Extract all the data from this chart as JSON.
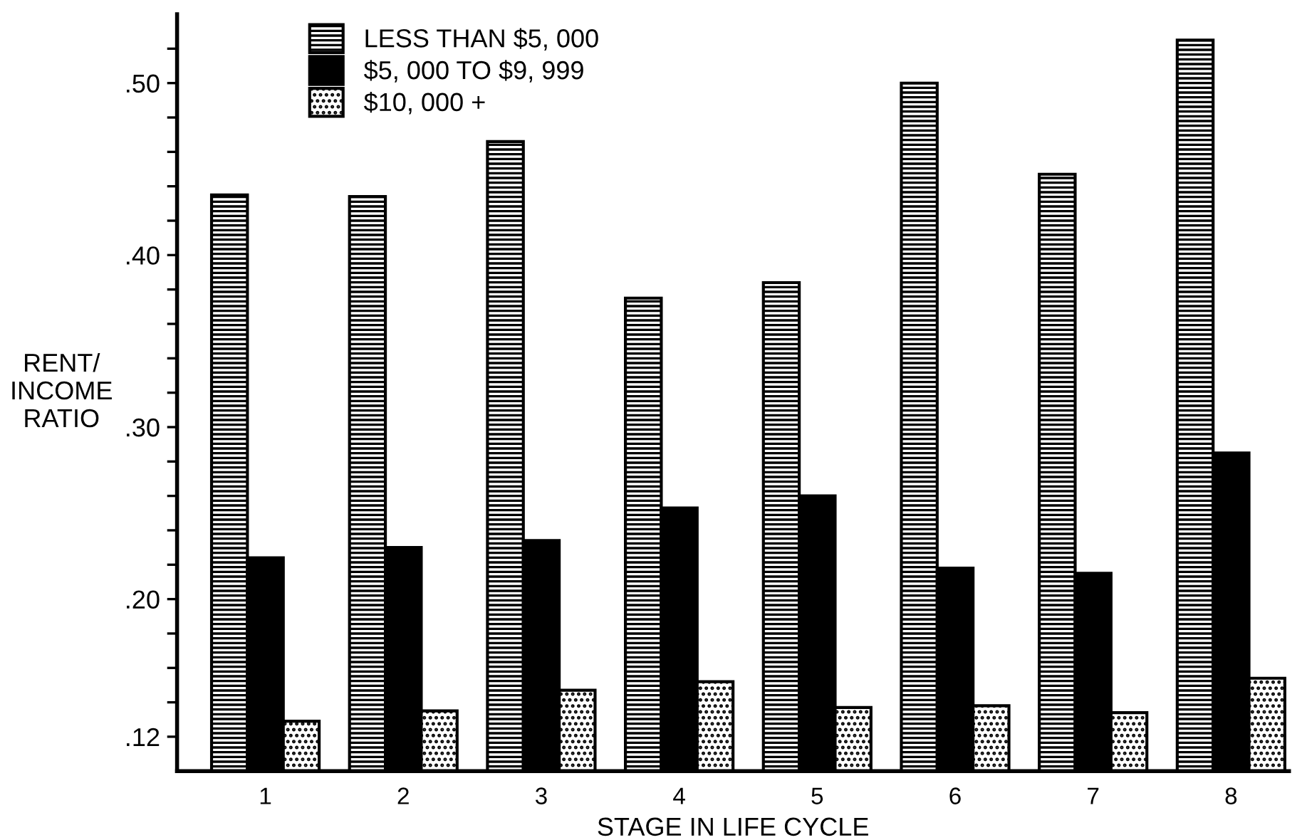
{
  "chart_data": {
    "type": "bar",
    "xlabel": "STAGE IN LIFE CYCLE",
    "ylabel": "RENT/\nINCOME\nRATIO",
    "categories": [
      "1",
      "2",
      "3",
      "4",
      "5",
      "6",
      "7",
      "8"
    ],
    "series": [
      {
        "name": "LESS THAN $5, 000",
        "color": "#000000",
        "values": [
          0.435,
          0.434,
          0.466,
          0.375,
          0.384,
          0.5,
          0.447,
          0.525
        ]
      },
      {
        "name": "$5, 000 TO $9, 999",
        "color": "#000000",
        "values": [
          0.224,
          0.23,
          0.234,
          0.253,
          0.26,
          0.218,
          0.215,
          0.285
        ]
      },
      {
        "name": "$10, 000 +",
        "color": "#000000",
        "values": [
          0.129,
          0.135,
          0.147,
          0.152,
          0.137,
          0.138,
          0.134,
          0.154
        ]
      }
    ],
    "ylim": [
      0.1,
      0.54
    ],
    "yticks": [
      {
        "value": 0.12,
        "label": ".12"
      },
      {
        "value": 0.14,
        "label": null
      },
      {
        "value": 0.16,
        "label": null
      },
      {
        "value": 0.18,
        "label": null
      },
      {
        "value": 0.2,
        "label": ".20"
      },
      {
        "value": 0.22,
        "label": null
      },
      {
        "value": 0.24,
        "label": null
      },
      {
        "value": 0.26,
        "label": null
      },
      {
        "value": 0.28,
        "label": null
      },
      {
        "value": 0.3,
        "label": ".30"
      },
      {
        "value": 0.32,
        "label": null
      },
      {
        "value": 0.34,
        "label": null
      },
      {
        "value": 0.36,
        "label": null
      },
      {
        "value": 0.38,
        "label": null
      },
      {
        "value": 0.4,
        "label": ".40"
      },
      {
        "value": 0.42,
        "label": null
      },
      {
        "value": 0.44,
        "label": null
      },
      {
        "value": 0.46,
        "label": null
      },
      {
        "value": 0.48,
        "label": null
      },
      {
        "value": 0.5,
        "label": ".50"
      },
      {
        "value": 0.52,
        "label": null
      }
    ],
    "legend": "top left",
    "grid": false
  }
}
